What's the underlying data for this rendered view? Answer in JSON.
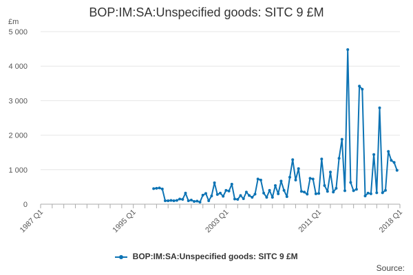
{
  "chart_data": {
    "type": "line",
    "title": "BOP:IM:SA:Unspecified goods: SITC 9 £M",
    "ylabel": "£m",
    "xlabel": "",
    "ylim": [
      0,
      5000
    ],
    "y_ticks": [
      0,
      1000,
      2000,
      3000,
      4000,
      5000
    ],
    "y_tick_labels": [
      "0",
      "1 000",
      "2 000",
      "3 000",
      "4 000",
      "5 000"
    ],
    "x_tick_labels": [
      "1987 Q1",
      "1995 Q1",
      "2003 Q1",
      "2011 Q1",
      "2018 Q1"
    ],
    "x_tick_index": [
      0,
      32,
      64,
      96,
      124
    ],
    "x_start": "1987 Q1",
    "x_end": "2018 Q1",
    "grid": true,
    "color": "#0c73b4",
    "first_point_index": 39,
    "series": [
      {
        "name": "BOP:IM:SA:Unspecified goods: SITC 9 £M",
        "values": [
          450,
          460,
          470,
          440,
          100,
          100,
          110,
          100,
          110,
          150,
          140,
          320,
          100,
          120,
          80,
          90,
          60,
          260,
          310,
          100,
          240,
          620,
          280,
          320,
          230,
          400,
          380,
          580,
          150,
          140,
          250,
          160,
          350,
          250,
          200,
          290,
          730,
          700,
          320,
          200,
          400,
          200,
          540,
          300,
          670,
          400,
          220,
          780,
          1290,
          700,
          1030,
          370,
          350,
          290,
          750,
          730,
          300,
          310,
          1310,
          540,
          370,
          930,
          350,
          460,
          1330,
          1880,
          390,
          4480,
          630,
          390,
          430,
          3420,
          3330,
          240,
          320,
          300,
          1440,
          330,
          2790,
          330,
          400,
          1530,
          1270,
          1210,
          980
        ]
      }
    ]
  },
  "legend": {
    "label": "BOP:IM:SA:Unspecified goods: SITC 9 £M"
  },
  "source_label": "Source:"
}
